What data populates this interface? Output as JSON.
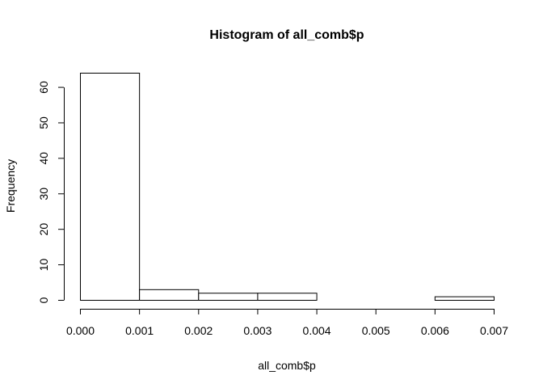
{
  "chart_data": {
    "type": "bar",
    "title": "Histogram of all_comb$p",
    "xlabel": "all_comb$p",
    "ylabel": "Frequency",
    "bins": [
      {
        "from": 0.0,
        "to": 0.001,
        "count": 64
      },
      {
        "from": 0.001,
        "to": 0.002,
        "count": 3
      },
      {
        "from": 0.002,
        "to": 0.003,
        "count": 2
      },
      {
        "from": 0.003,
        "to": 0.004,
        "count": 2
      },
      {
        "from": 0.004,
        "to": 0.005,
        "count": 0
      },
      {
        "from": 0.005,
        "to": 0.006,
        "count": 0
      },
      {
        "from": 0.006,
        "to": 0.007,
        "count": 1
      }
    ],
    "xlim": [
      0.0,
      0.007
    ],
    "ylim": [
      0,
      64
    ],
    "xticks": [
      "0.000",
      "0.001",
      "0.002",
      "0.003",
      "0.004",
      "0.005",
      "0.006",
      "0.007"
    ],
    "yticks": [
      "0",
      "10",
      "20",
      "30",
      "40",
      "50",
      "60"
    ],
    "grid": false,
    "legend": "none"
  }
}
